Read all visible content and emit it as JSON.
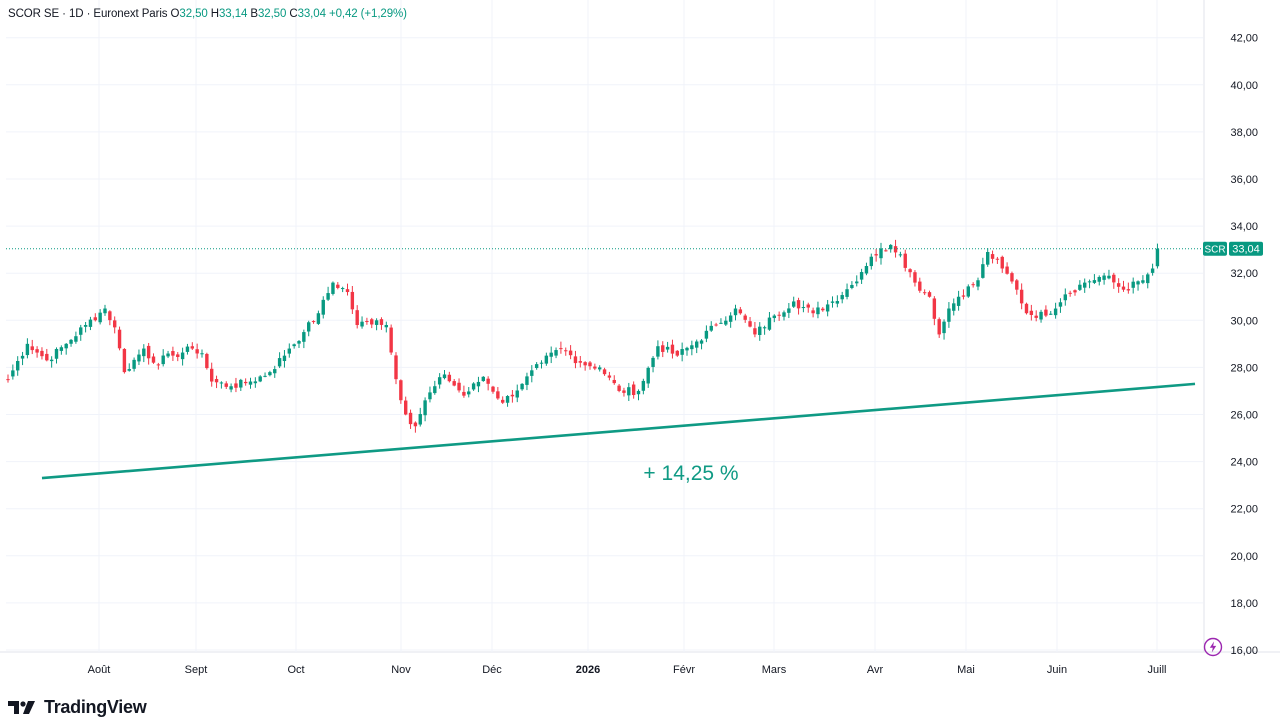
{
  "header": {
    "symbol_line": "SCOR SE · 1D · Euronext Paris",
    "open_label": "O",
    "open": "32,50",
    "high_label": "H",
    "high": "33,14",
    "low_label": "B",
    "low": "32,50",
    "close_label": "C",
    "close": "33,04",
    "change": "+0,42 (+1,29%)"
  },
  "brand": {
    "name": "TradingView"
  },
  "price_tag": {
    "symbol": "SCR",
    "value": "33,04"
  },
  "colors": {
    "up": "#089981",
    "down": "#f23645",
    "trend": "#0f9a84",
    "grid": "#f0f3fa",
    "axis_text": "#131722"
  },
  "chart_data": {
    "type": "candlestick",
    "y_axis": {
      "min": 16,
      "max": 42,
      "ticks": [
        "42,00",
        "40,00",
        "38,00",
        "36,00",
        "34,00",
        "32,00",
        "30,00",
        "28,00",
        "26,00",
        "24,00",
        "22,00",
        "20,00",
        "18,00",
        "16,00"
      ],
      "position": "right"
    },
    "x_axis": {
      "tick_labels": [
        "Août",
        "Sept",
        "Oct",
        "Nov",
        "Déc",
        "2026",
        "Févr",
        "Mars",
        "Avr",
        "Mai",
        "Juin",
        "Juill"
      ]
    },
    "last_price": 33.04,
    "trendline": {
      "start": {
        "date": "2025-07-14",
        "value": 23.3
      },
      "end": {
        "date": "2026-07-13",
        "value": 27.3
      }
    },
    "annotation": "+ 14,25 %",
    "close_path": [
      [
        0,
        27.5
      ],
      [
        4,
        29.0
      ],
      [
        8,
        28.3
      ],
      [
        12,
        29.0
      ],
      [
        16,
        29.8
      ],
      [
        20,
        30.5
      ],
      [
        22,
        29.7
      ],
      [
        24,
        27.8
      ],
      [
        28,
        28.8
      ],
      [
        30,
        28.2
      ],
      [
        34,
        28.5
      ],
      [
        38,
        28.8
      ],
      [
        40,
        28.6
      ],
      [
        42,
        27.4
      ],
      [
        46,
        27.2
      ],
      [
        50,
        27.4
      ],
      [
        54,
        27.8
      ],
      [
        58,
        28.8
      ],
      [
        61,
        29.5
      ],
      [
        64,
        30.3
      ],
      [
        67,
        31.6
      ],
      [
        70,
        31.2
      ],
      [
        72,
        29.8
      ],
      [
        76,
        30.0
      ],
      [
        78,
        29.8
      ],
      [
        80,
        27.5
      ],
      [
        82,
        26.0
      ],
      [
        84,
        25.5
      ],
      [
        86,
        26.6
      ],
      [
        90,
        27.7
      ],
      [
        94,
        26.8
      ],
      [
        98,
        27.6
      ],
      [
        102,
        26.5
      ],
      [
        106,
        27.3
      ],
      [
        110,
        28.2
      ],
      [
        114,
        28.8
      ],
      [
        118,
        28.2
      ],
      [
        122,
        28.0
      ],
      [
        126,
        27.0
      ],
      [
        130,
        27.0
      ],
      [
        134,
        28.9
      ],
      [
        138,
        28.5
      ],
      [
        142,
        29.1
      ],
      [
        146,
        29.8
      ],
      [
        150,
        30.5
      ],
      [
        154,
        29.4
      ],
      [
        158,
        30.2
      ],
      [
        162,
        30.8
      ],
      [
        166,
        30.3
      ],
      [
        170,
        30.8
      ],
      [
        174,
        31.5
      ],
      [
        178,
        32.7
      ],
      [
        182,
        33.2
      ],
      [
        184,
        32.8
      ],
      [
        187,
        31.6
      ],
      [
        190,
        31.0
      ],
      [
        192,
        29.4
      ],
      [
        194,
        30.5
      ],
      [
        196,
        31.0
      ],
      [
        200,
        31.7
      ],
      [
        202,
        32.9
      ],
      [
        205,
        32.2
      ],
      [
        208,
        31.3
      ],
      [
        210,
        30.3
      ],
      [
        214,
        30.2
      ],
      [
        218,
        31.1
      ],
      [
        222,
        31.6
      ],
      [
        226,
        31.9
      ],
      [
        230,
        31.3
      ],
      [
        234,
        31.7
      ],
      [
        236,
        32.2
      ],
      [
        237,
        33.04
      ]
    ]
  }
}
